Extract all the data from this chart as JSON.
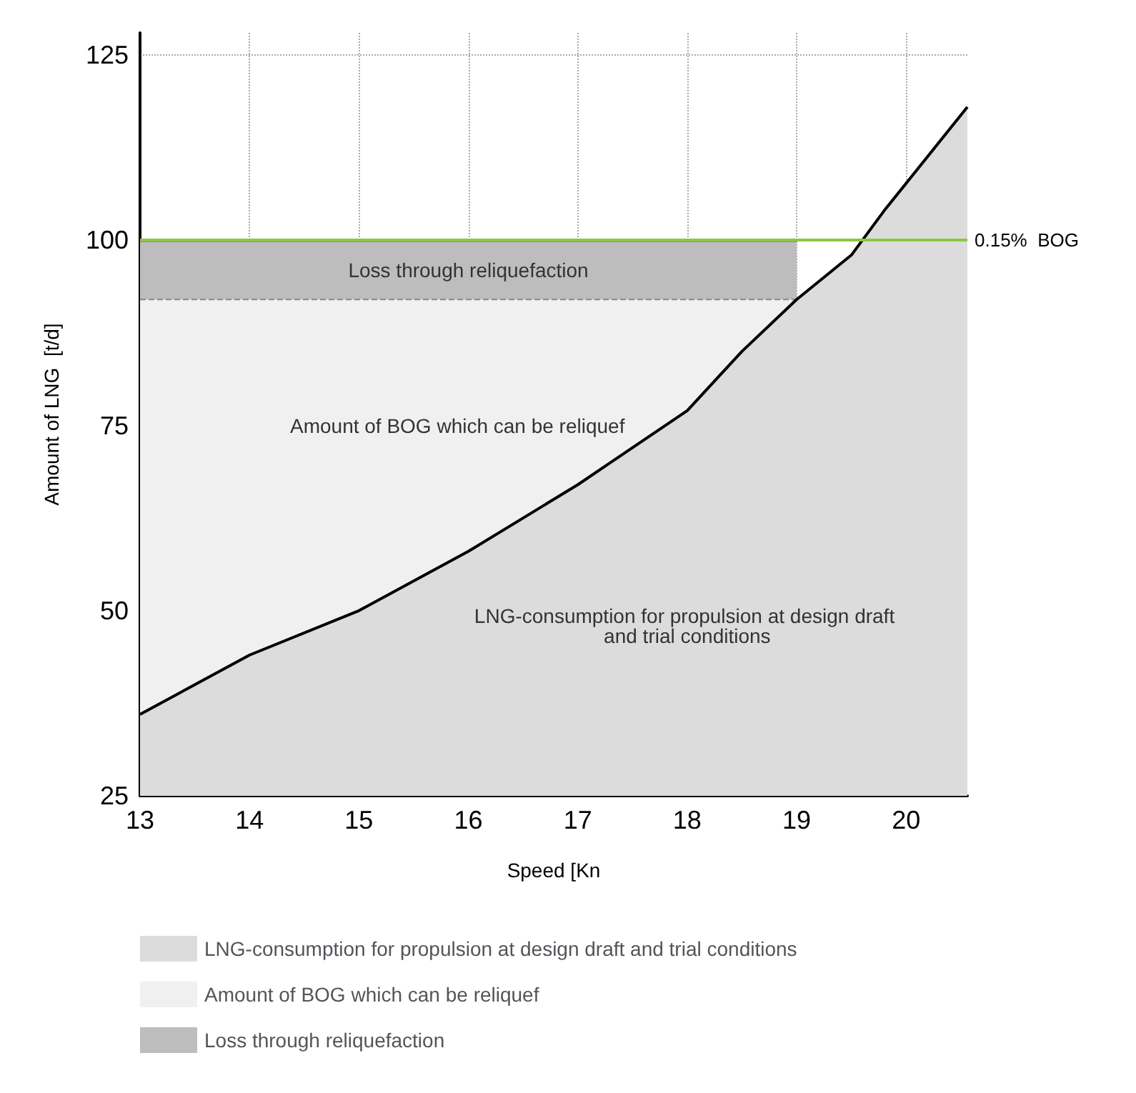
{
  "chart_data": {
    "type": "area",
    "xlabel": "Speed [Kn",
    "ylabel": "Amount of LNG  [t/d]",
    "xlim": [
      13,
      20.56
    ],
    "xticks": [
      13,
      14,
      15,
      16,
      17,
      18,
      19,
      20
    ],
    "ylim": [
      25,
      128
    ],
    "yticks": [
      25,
      50,
      75,
      100,
      125
    ],
    "series": [
      {
        "name": "LNG-consumption for propulsion at design draft and trial conditions",
        "color": "#dcdcdc",
        "x": [
          13,
          14,
          15,
          16,
          17,
          17.3,
          18,
          18.5,
          19,
          19.5,
          19.8,
          20.56
        ],
        "values": [
          36,
          44,
          50,
          58,
          67,
          70,
          77,
          85,
          92,
          98,
          104,
          118
        ]
      },
      {
        "name": "Amount of BOG which can be reliquef",
        "color": "#f0f0f0",
        "x": [
          13,
          19
        ],
        "values": [
          92,
          92
        ]
      },
      {
        "name": "Loss through reliquefaction",
        "color": "#bdbdbd",
        "x": [
          13,
          19
        ],
        "values": [
          100,
          100
        ]
      }
    ],
    "ref_lines": [
      {
        "axis": "y",
        "value": 100,
        "label": "0.15%  BOG",
        "color": "#8dc63f"
      }
    ],
    "annotations": [
      "Loss through reliquefaction",
      "Amount of BOG which can be reliquef",
      "LNG-consumption for propulsion at design draft and trial conditions"
    ],
    "grid": true,
    "legend": "bottom",
    "marker": "none",
    "line_style": "solid"
  }
}
